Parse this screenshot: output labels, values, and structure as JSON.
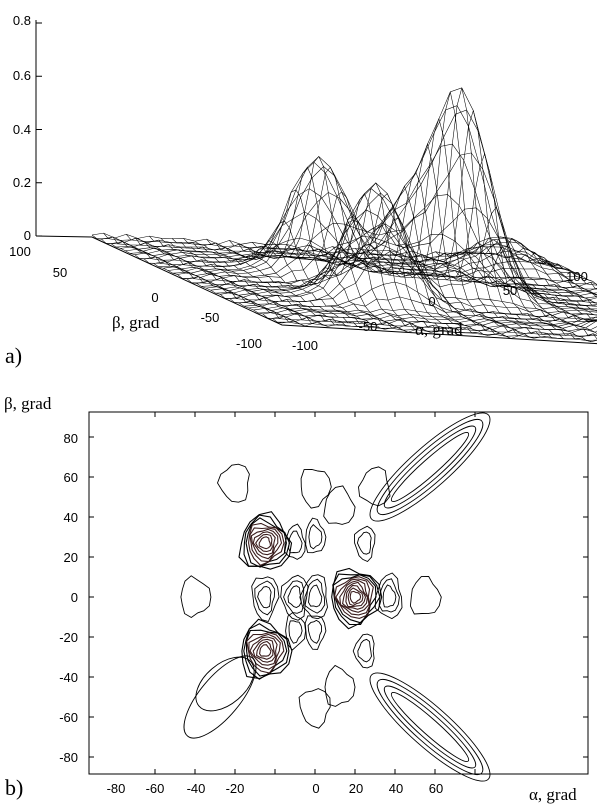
{
  "panels": {
    "a_label": "a)",
    "b_label": "b)"
  },
  "chart_data": [
    {
      "type": "surface3d",
      "panel": "a)",
      "xlabel": "α, grad",
      "ylabel": "β, grad",
      "xlim": [
        -100,
        100
      ],
      "ylim": [
        -100,
        100
      ],
      "zlim": [
        0,
        0.8
      ],
      "x_ticks": [
        "-100",
        "-50",
        "0",
        "50",
        "100"
      ],
      "y_ticks": [
        "-100",
        "-50",
        "0",
        "50",
        "100"
      ],
      "z_ticks": [
        "0",
        "0.2",
        "0.4",
        "0.6",
        "0.8"
      ],
      "peaks": [
        {
          "x": -30,
          "y": 30,
          "z": 0.45
        },
        {
          "x": -30,
          "y": -30,
          "z": 0.45
        },
        {
          "x": 20,
          "y": 0,
          "z": 0.75
        },
        {
          "x": -5,
          "y": 0,
          "z": 0.3
        },
        {
          "x": 70,
          "y": 75,
          "z": 0.12
        },
        {
          "x": 70,
          "y": -75,
          "z": 0.12
        }
      ]
    },
    {
      "type": "contour",
      "panel": "b)",
      "xlabel": "α, grad",
      "ylabel": "β, grad",
      "xlim": [
        -90,
        90
      ],
      "ylim": [
        -90,
        90
      ],
      "x_ticks": [
        "-80",
        "-60",
        "-40",
        "-20",
        "0",
        "20",
        "40",
        "60"
      ],
      "y_ticks": [
        "80",
        "60",
        "40",
        "20",
        "0",
        "-20",
        "-40",
        "-60",
        "-80"
      ],
      "centers": [
        {
          "x": -25,
          "y": 27,
          "levels": 9
        },
        {
          "x": -25,
          "y": -27,
          "levels": 9
        },
        {
          "x": 20,
          "y": 0,
          "levels": 10
        },
        {
          "x": -25,
          "y": 0,
          "levels": 3
        },
        {
          "x": -10,
          "y": 0,
          "levels": 3
        },
        {
          "x": 0,
          "y": 0,
          "levels": 3
        },
        {
          "x": -10,
          "y": 27,
          "levels": 2
        },
        {
          "x": 0,
          "y": 30,
          "levels": 2
        },
        {
          "x": -10,
          "y": -17,
          "levels": 2
        },
        {
          "x": 0,
          "y": -17,
          "levels": 2
        },
        {
          "x": 25,
          "y": 27,
          "levels": 2
        },
        {
          "x": 25,
          "y": -27,
          "levels": 2
        },
        {
          "x": 37,
          "y": 0,
          "levels": 3
        },
        {
          "x": 55,
          "y": 0,
          "levels": 1
        },
        {
          "x": -60,
          "y": 0,
          "levels": 1
        },
        {
          "x": 0,
          "y": 55,
          "levels": 1
        },
        {
          "x": 0,
          "y": -55,
          "levels": 1
        },
        {
          "x": -40,
          "y": 57,
          "levels": 1
        },
        {
          "x": 30,
          "y": 55,
          "levels": 1
        },
        {
          "x": 12,
          "y": 45,
          "levels": 1
        },
        {
          "x": 12,
          "y": -45,
          "levels": 1
        }
      ],
      "ridges": [
        {
          "from": [
            35,
            45
          ],
          "to": [
            80,
            85
          ],
          "levels": 4
        },
        {
          "from": [
            35,
            -45
          ],
          "to": [
            80,
            -85
          ],
          "levels": 4
        },
        {
          "from": [
            -35,
            -35
          ],
          "to": [
            -55,
            -52
          ],
          "levels": 1
        },
        {
          "from": [
            -35,
            -35
          ],
          "to": [
            -60,
            -65
          ],
          "levels": 1
        }
      ]
    }
  ]
}
